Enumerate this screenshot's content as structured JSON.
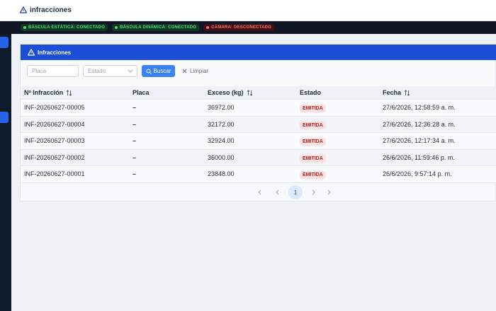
{
  "header": {
    "title": "infracciones"
  },
  "status": [
    {
      "label": "BÁSCULA ESTÁTICA: CONECTADO",
      "state": "ok"
    },
    {
      "label": "BÁSCULA DINÁMICA: CONECTADO",
      "state": "ok"
    },
    {
      "label": "CÁMARA: DESCONECTADO",
      "state": "error"
    }
  ],
  "card": {
    "title": "Infracciones"
  },
  "filters": {
    "placa_placeholder": "Placa",
    "estado_placeholder": "Estado",
    "search_button": "Buscar",
    "clear_button": "Limpiar"
  },
  "table": {
    "columns": [
      "Nº Infracción",
      "Placa",
      "Exceso (kg)",
      "Estado",
      "Fecha"
    ],
    "sortable": [
      true,
      false,
      true,
      false,
      true
    ],
    "rows": [
      [
        "INF-20260627-00005",
        "–",
        "36972.00",
        "EMITIDA",
        "27/6/2026, 12:58:59 a. m."
      ],
      [
        "INF-20260627-00004",
        "–",
        "32172.00",
        "EMITIDA",
        "27/6/2026, 12:36:28 a. m."
      ],
      [
        "INF-20260627-00003",
        "–",
        "32924.00",
        "EMITIDA",
        "27/6/2026, 12:17:34 a. m."
      ],
      [
        "INF-20260627-00002",
        "–",
        "36000.00",
        "EMITIDA",
        "26/6/2026, 11:59:46 p. m."
      ],
      [
        "INF-20260627-00001",
        "–",
        "23848.00",
        "EMITIDA",
        "26/6/2026, 9:57:14 p. m."
      ]
    ]
  },
  "pagination": {
    "current_page": "1"
  }
}
